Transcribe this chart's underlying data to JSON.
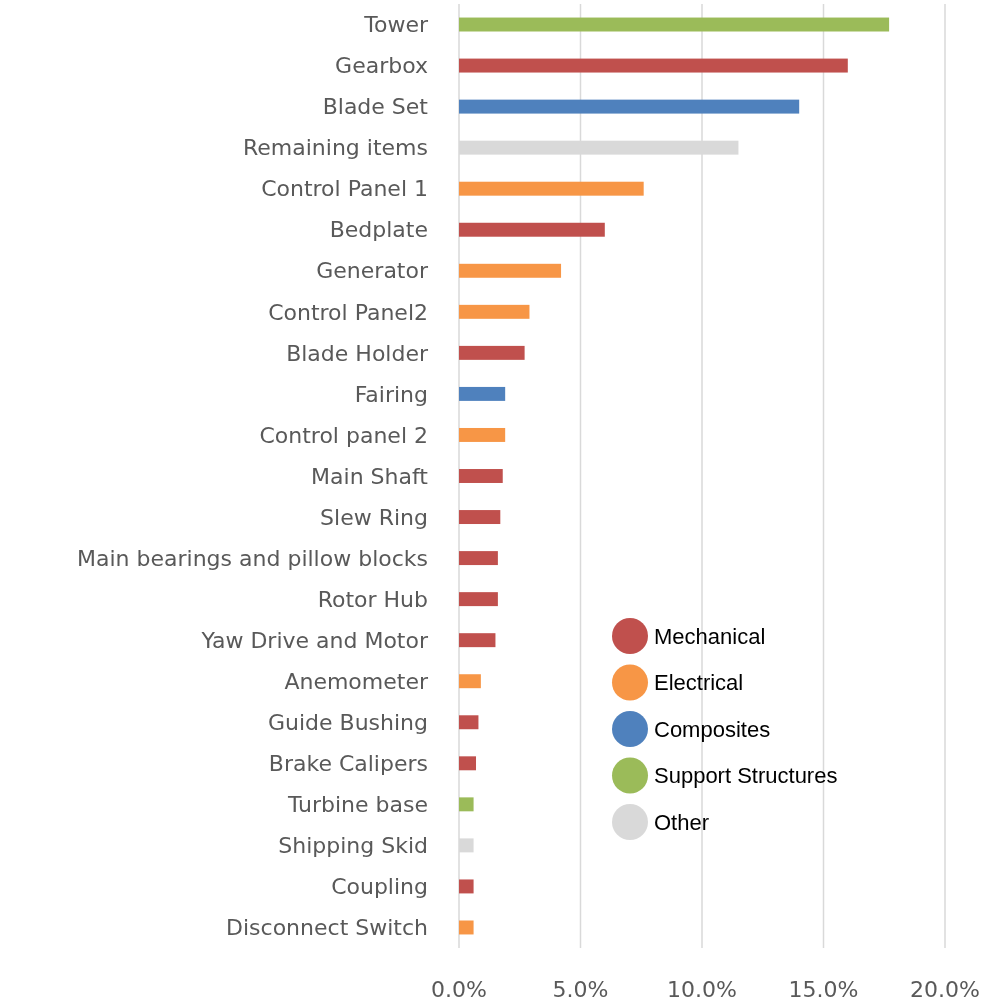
{
  "chart_data": {
    "type": "bar",
    "orientation": "horizontal",
    "categories": [
      "Tower",
      "Gearbox",
      "Blade Set",
      "Remaining items",
      "Control Panel 1",
      "Bedplate",
      "Generator",
      "Control Panel2",
      "Blade Holder",
      "Fairing",
      "Control panel 2",
      "Main Shaft",
      "Slew Ring",
      "Main bearings and pillow blocks",
      "Rotor Hub",
      "Yaw Drive and Motor",
      "Anemometer",
      "Guide Bushing",
      "Brake Calipers",
      "Turbine base",
      "Shipping Skid",
      "Coupling",
      "Disconnect Switch"
    ],
    "series": [
      {
        "name": "Mechanical",
        "color": "#c0504d",
        "values": [
          null,
          16.0,
          null,
          null,
          null,
          6.0,
          null,
          null,
          2.7,
          null,
          null,
          1.8,
          1.7,
          1.6,
          1.6,
          1.5,
          null,
          0.8,
          0.7,
          null,
          null,
          0.6,
          null
        ]
      },
      {
        "name": "Electrical",
        "color": "#f79646",
        "values": [
          null,
          null,
          null,
          null,
          7.6,
          null,
          4.2,
          2.9,
          null,
          null,
          1.9,
          null,
          null,
          null,
          null,
          null,
          0.9,
          null,
          null,
          null,
          null,
          null,
          0.6
        ]
      },
      {
        "name": "Composites",
        "color": "#4f81bd",
        "values": [
          null,
          null,
          14.0,
          null,
          null,
          null,
          null,
          null,
          null,
          1.9,
          null,
          null,
          null,
          null,
          null,
          null,
          null,
          null,
          null,
          null,
          null,
          null,
          null
        ]
      },
      {
        "name": "Support Structures",
        "color": "#9bbb59",
        "values": [
          17.7,
          null,
          null,
          null,
          null,
          null,
          null,
          null,
          null,
          null,
          null,
          null,
          null,
          null,
          null,
          null,
          null,
          null,
          null,
          0.6,
          null,
          null,
          null
        ]
      },
      {
        "name": "Other",
        "color": "#d9d9d9",
        "values": [
          null,
          null,
          null,
          11.5,
          null,
          null,
          null,
          null,
          null,
          null,
          null,
          null,
          null,
          null,
          null,
          null,
          null,
          null,
          null,
          null,
          0.6,
          null,
          null
        ]
      }
    ],
    "xlim": [
      0,
      20
    ],
    "xticks": [
      {
        "value": 0,
        "label": "0.0%"
      },
      {
        "value": 5,
        "label": "5.0%"
      },
      {
        "value": 10,
        "label": "10.0%"
      },
      {
        "value": 15,
        "label": "15.0%"
      },
      {
        "value": 20,
        "label": "20.0%"
      }
    ],
    "grid": "x",
    "legend": "bottom right"
  }
}
